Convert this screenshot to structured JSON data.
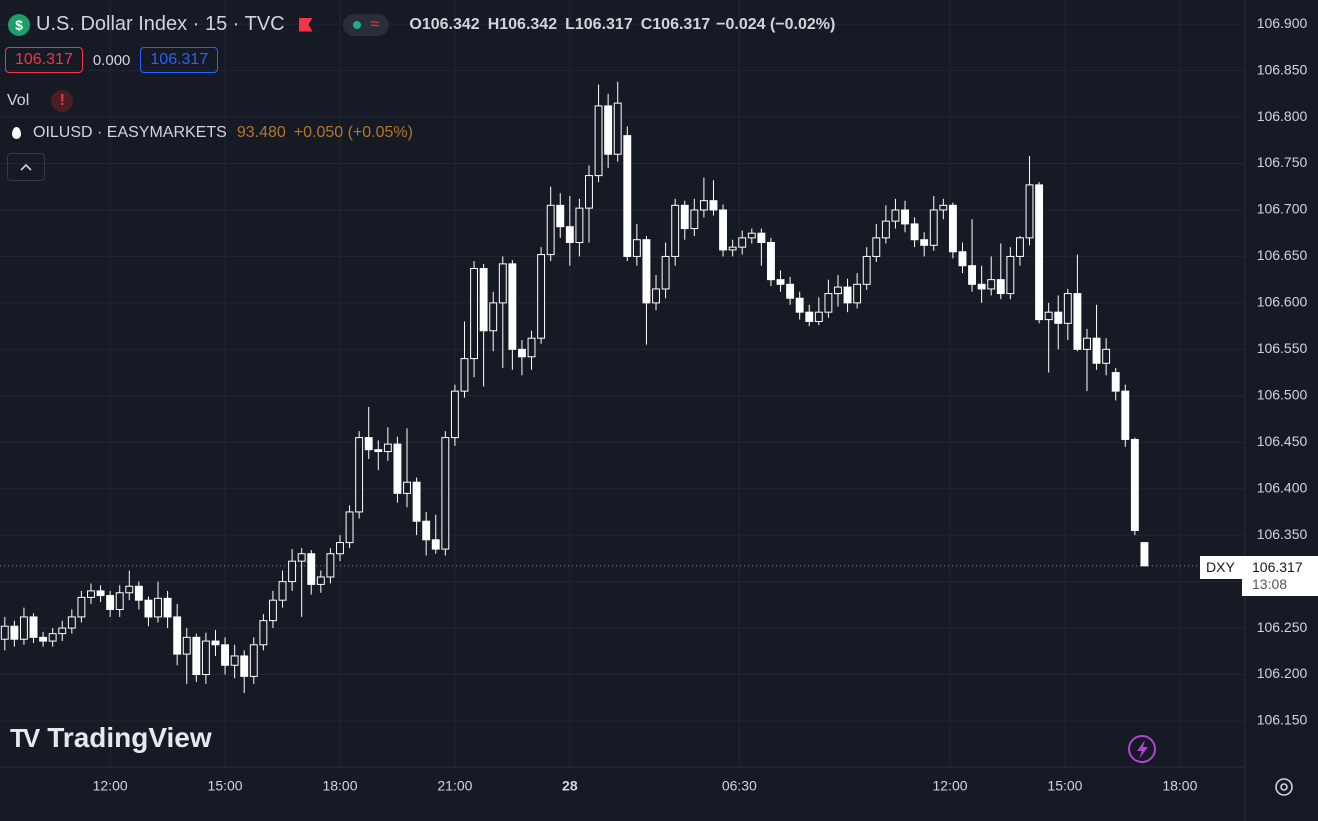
{
  "chart_data": {
    "type": "candlestick",
    "title": "U.S. Dollar Index · 15 · TVC",
    "header": {
      "ohlc": [
        {
          "label": "O",
          "value": "106.342"
        },
        {
          "label": "H",
          "value": "106.342"
        },
        {
          "label": "L",
          "value": "106.317"
        },
        {
          "label": "C",
          "value": "106.317"
        }
      ],
      "change": "−0.024 (−0.02%)",
      "bid": "106.317",
      "spread": "0.000",
      "ask": "106.317",
      "volume_label": "Vol",
      "compare_symbol": "OILUSD · EASYMARKETS",
      "compare_price": "93.480",
      "compare_change": "+0.050 (+0.05%)"
    },
    "logo": "TradingView",
    "price_tag": {
      "symbol": "DXY",
      "price": "106.317",
      "countdown": "13:08"
    },
    "up_color": "#ffffff",
    "down_color": "#ffffff",
    "background": "#161a25",
    "grid": true,
    "xlim": [
      -0.5,
      129.5
    ],
    "xticks": [
      {
        "value": 11,
        "label": "12:00"
      },
      {
        "value": 23,
        "label": "15:00"
      },
      {
        "value": 35,
        "label": "18:00"
      },
      {
        "value": 47,
        "label": "21:00"
      },
      {
        "value": 59,
        "label": "28"
      },
      {
        "value": 76.7,
        "label": "06:30"
      },
      {
        "value": 98.7,
        "label": "12:00"
      },
      {
        "value": 110.7,
        "label": "15:00"
      },
      {
        "value": 122.7,
        "label": "18:00"
      }
    ],
    "ylim": [
      106.108,
      106.926
    ],
    "yticks": [
      {
        "value": 106.15,
        "label": "106.150"
      },
      {
        "value": 106.2,
        "label": "106.200"
      },
      {
        "value": 106.25,
        "label": "106.250"
      },
      {
        "value": 106.3,
        "label": "106.300"
      },
      {
        "value": 106.35,
        "label": "106.350"
      },
      {
        "value": 106.4,
        "label": "106.400"
      },
      {
        "value": 106.45,
        "label": "106.450"
      },
      {
        "value": 106.5,
        "label": "106.500"
      },
      {
        "value": 106.55,
        "label": "106.550"
      },
      {
        "value": 106.6,
        "label": "106.600"
      },
      {
        "value": 106.65,
        "label": "106.650"
      },
      {
        "value": 106.7,
        "label": "106.700"
      },
      {
        "value": 106.75,
        "label": "106.750"
      },
      {
        "value": 106.8,
        "label": "106.800"
      },
      {
        "value": 106.85,
        "label": "106.850"
      },
      {
        "value": 106.9,
        "label": "106.900"
      }
    ],
    "last_price": 106.317,
    "candles": [
      [
        106.238,
        106.262,
        106.226,
        106.252
      ],
      [
        106.252,
        106.258,
        106.23,
        106.238
      ],
      [
        106.238,
        106.272,
        106.232,
        106.262
      ],
      [
        106.262,
        106.266,
        106.234,
        106.24
      ],
      [
        106.24,
        106.246,
        106.23,
        106.236
      ],
      [
        106.236,
        106.25,
        106.23,
        106.244
      ],
      [
        106.244,
        106.258,
        106.236,
        106.25
      ],
      [
        106.25,
        106.27,
        106.244,
        106.262
      ],
      [
        106.262,
        106.29,
        106.256,
        106.283
      ],
      [
        106.283,
        106.298,
        106.276,
        106.29
      ],
      [
        106.29,
        106.296,
        106.278,
        106.285
      ],
      [
        106.285,
        106.29,
        106.262,
        106.27
      ],
      [
        106.27,
        106.296,
        106.262,
        106.288
      ],
      [
        106.288,
        106.312,
        106.28,
        106.295
      ],
      [
        106.295,
        106.3,
        106.27,
        106.28
      ],
      [
        106.28,
        106.284,
        106.252,
        106.262
      ],
      [
        106.262,
        106.3,
        106.256,
        106.282
      ],
      [
        106.282,
        106.29,
        106.25,
        106.262
      ],
      [
        106.262,
        106.276,
        106.21,
        106.222
      ],
      [
        106.222,
        106.25,
        106.19,
        106.24
      ],
      [
        106.24,
        106.244,
        106.192,
        106.2
      ],
      [
        106.2,
        106.245,
        106.19,
        106.236
      ],
      [
        106.236,
        106.248,
        106.22,
        106.232
      ],
      [
        106.232,
        106.24,
        106.2,
        106.21
      ],
      [
        106.21,
        106.232,
        106.196,
        106.22
      ],
      [
        106.22,
        106.226,
        106.18,
        106.198
      ],
      [
        106.198,
        106.24,
        106.19,
        106.232
      ],
      [
        106.232,
        106.265,
        106.226,
        106.258
      ],
      [
        106.258,
        106.29,
        106.25,
        106.28
      ],
      [
        106.28,
        106.312,
        106.272,
        106.3
      ],
      [
        106.3,
        106.335,
        106.29,
        106.322
      ],
      [
        106.322,
        106.336,
        106.262,
        106.33
      ],
      [
        106.33,
        106.334,
        106.286,
        106.297
      ],
      [
        106.297,
        106.312,
        106.288,
        106.305
      ],
      [
        106.305,
        106.336,
        106.298,
        106.33
      ],
      [
        106.33,
        106.35,
        106.322,
        106.342
      ],
      [
        106.342,
        106.382,
        106.336,
        106.375
      ],
      [
        106.375,
        106.462,
        106.368,
        106.455
      ],
      [
        106.455,
        106.488,
        106.432,
        106.442
      ],
      [
        106.442,
        106.452,
        106.42,
        106.44
      ],
      [
        106.44,
        106.466,
        106.43,
        106.448
      ],
      [
        106.448,
        106.456,
        106.385,
        106.395
      ],
      [
        106.395,
        106.465,
        106.38,
        106.407
      ],
      [
        106.407,
        106.412,
        106.35,
        106.365
      ],
      [
        106.365,
        106.375,
        106.328,
        106.345
      ],
      [
        106.345,
        106.372,
        106.33,
        106.335
      ],
      [
        106.335,
        106.462,
        106.328,
        106.455
      ],
      [
        106.455,
        106.512,
        106.446,
        106.505
      ],
      [
        106.505,
        106.58,
        106.498,
        106.54
      ],
      [
        106.54,
        106.645,
        106.52,
        106.637
      ],
      [
        106.637,
        106.642,
        106.51,
        106.57
      ],
      [
        106.57,
        106.612,
        106.548,
        106.6
      ],
      [
        106.6,
        106.65,
        106.53,
        106.642
      ],
      [
        106.642,
        106.646,
        106.528,
        106.55
      ],
      [
        106.55,
        106.56,
        106.522,
        106.542
      ],
      [
        106.542,
        106.57,
        106.528,
        106.562
      ],
      [
        106.562,
        106.66,
        106.556,
        106.652
      ],
      [
        106.652,
        106.725,
        106.645,
        106.705
      ],
      [
        106.705,
        106.718,
        106.67,
        106.682
      ],
      [
        106.682,
        106.715,
        106.64,
        106.665
      ],
      [
        106.665,
        106.712,
        106.65,
        106.702
      ],
      [
        106.702,
        106.748,
        106.665,
        106.737
      ],
      [
        106.737,
        106.835,
        106.73,
        106.812
      ],
      [
        106.812,
        106.825,
        106.745,
        106.76
      ],
      [
        106.76,
        106.838,
        106.752,
        106.815
      ],
      [
        106.78,
        106.79,
        106.645,
        106.65
      ],
      [
        106.65,
        106.685,
        106.64,
        106.668
      ],
      [
        106.668,
        106.672,
        106.555,
        106.6
      ],
      [
        106.6,
        106.63,
        106.592,
        106.615
      ],
      [
        106.615,
        106.665,
        106.605,
        106.65
      ],
      [
        106.65,
        106.712,
        106.64,
        106.705
      ],
      [
        106.705,
        106.71,
        106.668,
        106.68
      ],
      [
        106.68,
        106.712,
        106.672,
        106.7
      ],
      [
        106.7,
        106.735,
        106.692,
        106.71
      ],
      [
        106.71,
        106.732,
        106.694,
        106.7
      ],
      [
        106.7,
        106.706,
        106.65,
        106.657
      ],
      [
        106.657,
        106.668,
        106.65,
        106.66
      ],
      [
        106.66,
        106.678,
        106.652,
        106.67
      ],
      [
        106.67,
        106.68,
        106.664,
        106.675
      ],
      [
        106.675,
        106.68,
        106.64,
        106.665
      ],
      [
        106.665,
        106.67,
        106.618,
        106.625
      ],
      [
        106.625,
        106.635,
        106.612,
        106.62
      ],
      [
        106.62,
        106.628,
        106.598,
        106.605
      ],
      [
        106.605,
        106.612,
        106.582,
        106.59
      ],
      [
        106.59,
        106.598,
        106.575,
        106.58
      ],
      [
        106.58,
        106.606,
        106.576,
        106.59
      ],
      [
        106.59,
        106.625,
        106.584,
        106.61
      ],
      [
        106.61,
        106.63,
        106.596,
        106.617
      ],
      [
        106.617,
        106.626,
        106.59,
        106.6
      ],
      [
        106.6,
        106.632,
        106.594,
        106.62
      ],
      [
        106.62,
        106.66,
        106.614,
        106.65
      ],
      [
        106.65,
        106.685,
        106.644,
        106.67
      ],
      [
        106.67,
        106.705,
        106.664,
        106.688
      ],
      [
        106.688,
        106.712,
        106.68,
        106.7
      ],
      [
        106.7,
        106.71,
        106.676,
        106.685
      ],
      [
        106.685,
        106.692,
        106.66,
        106.668
      ],
      [
        106.668,
        106.676,
        106.65,
        106.662
      ],
      [
        106.662,
        106.715,
        106.656,
        106.7
      ],
      [
        106.7,
        106.712,
        106.69,
        106.705
      ],
      [
        106.705,
        106.708,
        106.648,
        106.655
      ],
      [
        106.655,
        106.665,
        106.632,
        106.64
      ],
      [
        106.64,
        106.69,
        106.612,
        106.62
      ],
      [
        106.62,
        106.64,
        106.6,
        106.615
      ],
      [
        106.615,
        106.65,
        106.608,
        106.625
      ],
      [
        106.625,
        106.664,
        106.604,
        106.61
      ],
      [
        106.61,
        106.66,
        106.604,
        106.65
      ],
      [
        106.65,
        106.672,
        106.64,
        106.67
      ],
      [
        106.67,
        106.758,
        106.662,
        106.727
      ],
      [
        106.727,
        106.73,
        106.578,
        106.582
      ],
      [
        106.582,
        106.6,
        106.525,
        106.59
      ],
      [
        106.59,
        106.608,
        106.55,
        106.578
      ],
      [
        106.578,
        106.615,
        106.56,
        106.61
      ],
      [
        106.61,
        106.652,
        106.548,
        106.55
      ],
      [
        106.55,
        106.572,
        106.505,
        106.562
      ],
      [
        106.562,
        106.598,
        106.528,
        106.535
      ],
      [
        106.535,
        106.562,
        106.522,
        106.55
      ],
      [
        106.525,
        106.53,
        106.495,
        106.505
      ],
      [
        106.505,
        106.512,
        106.445,
        106.453
      ],
      [
        106.453,
        106.455,
        106.35,
        106.355
      ],
      [
        106.342,
        106.342,
        106.317,
        106.317
      ]
    ]
  }
}
